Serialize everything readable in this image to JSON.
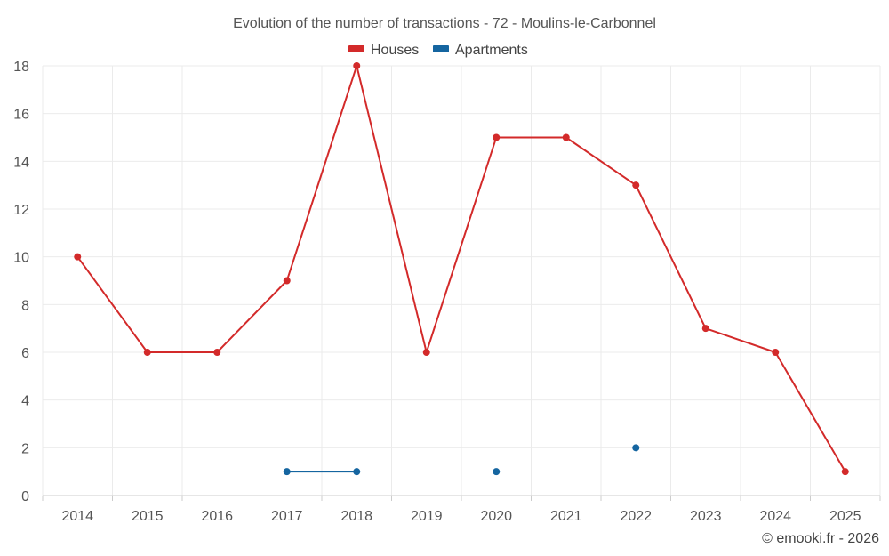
{
  "chart_data": {
    "type": "line",
    "title": "Evolution of the number of transactions - 72 - Moulins-le-Carbonnel",
    "categories": [
      "2014",
      "2015",
      "2016",
      "2017",
      "2018",
      "2019",
      "2020",
      "2021",
      "2022",
      "2023",
      "2024",
      "2025"
    ],
    "ylim": [
      0,
      18
    ],
    "yticks": [
      0,
      2,
      4,
      6,
      8,
      10,
      12,
      14,
      16,
      18
    ],
    "grid": true,
    "legend_position": "top-center",
    "series": [
      {
        "name": "Houses",
        "color": "#d32a2a",
        "values": [
          10,
          6,
          6,
          9,
          18,
          6,
          15,
          15,
          13,
          7,
          6,
          1
        ]
      },
      {
        "name": "Apartments",
        "color": "#1565a0",
        "values": [
          null,
          null,
          null,
          1,
          1,
          null,
          1,
          null,
          2,
          null,
          null,
          null
        ]
      }
    ]
  },
  "credit": "© emooki.fr - 2026"
}
